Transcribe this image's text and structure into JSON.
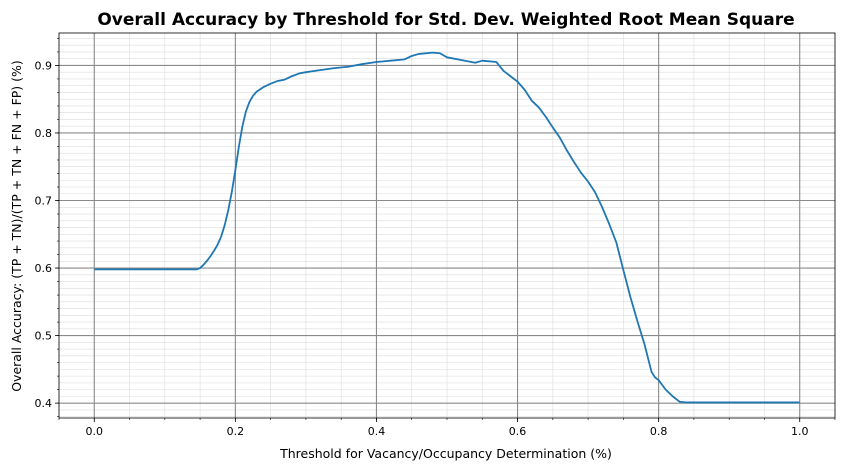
{
  "chart_data": {
    "type": "line",
    "title": "Overall Accuracy by Threshold for Std. Dev. Weighted Root Mean Square",
    "xlabel": "Threshold for Vacancy/Occupancy Determination (%)",
    "ylabel": "Overall Accuracy: (TP + TN)/(TP + TN + FN + FP) (%)",
    "xlim": [
      -0.05,
      1.05
    ],
    "ylim": [
      0.378,
      0.948
    ],
    "x_ticks": [
      "0.0",
      "0.2",
      "0.4",
      "0.6",
      "0.8",
      "1.0"
    ],
    "y_ticks": [
      "0.4",
      "0.5",
      "0.6",
      "0.7",
      "0.8",
      "0.9"
    ],
    "grid": {
      "major": true,
      "minor": true
    },
    "series_color": "#1f77b4",
    "series": [
      {
        "x": [
          0.0,
          0.05,
          0.1,
          0.145,
          0.15,
          0.155,
          0.16,
          0.165,
          0.17,
          0.175,
          0.18,
          0.185,
          0.19,
          0.195,
          0.2,
          0.205,
          0.21,
          0.215,
          0.22,
          0.225,
          0.23,
          0.24,
          0.25,
          0.26,
          0.27,
          0.28,
          0.29,
          0.3,
          0.32,
          0.34,
          0.36,
          0.38,
          0.4,
          0.42,
          0.44,
          0.45,
          0.46,
          0.48,
          0.49,
          0.5,
          0.52,
          0.54,
          0.55,
          0.57,
          0.58,
          0.59,
          0.6,
          0.61,
          0.62,
          0.63,
          0.64,
          0.65,
          0.66,
          0.67,
          0.68,
          0.69,
          0.7,
          0.71,
          0.72,
          0.73,
          0.74,
          0.75,
          0.76,
          0.77,
          0.78,
          0.79,
          0.795,
          0.8,
          0.81,
          0.82,
          0.83,
          0.84,
          0.9,
          1.0
        ],
        "values": [
          0.598,
          0.598,
          0.598,
          0.598,
          0.6,
          0.605,
          0.611,
          0.618,
          0.626,
          0.635,
          0.647,
          0.664,
          0.686,
          0.713,
          0.745,
          0.78,
          0.81,
          0.832,
          0.846,
          0.855,
          0.861,
          0.868,
          0.873,
          0.877,
          0.879,
          0.884,
          0.888,
          0.89,
          0.893,
          0.896,
          0.898,
          0.902,
          0.905,
          0.907,
          0.909,
          0.914,
          0.917,
          0.919,
          0.918,
          0.912,
          0.908,
          0.904,
          0.907,
          0.905,
          0.892,
          0.884,
          0.876,
          0.864,
          0.848,
          0.838,
          0.824,
          0.808,
          0.793,
          0.774,
          0.757,
          0.741,
          0.728,
          0.712,
          0.69,
          0.665,
          0.638,
          0.597,
          0.557,
          0.521,
          0.487,
          0.446,
          0.438,
          0.434,
          0.42,
          0.41,
          0.402,
          0.401,
          0.401,
          0.401
        ]
      }
    ]
  }
}
